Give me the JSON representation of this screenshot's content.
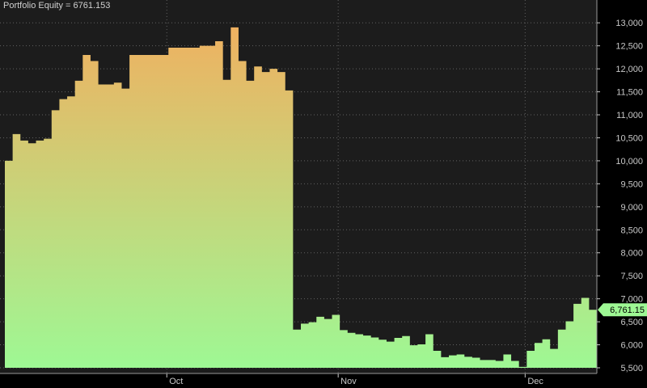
{
  "title": "Portfolio Equity = 6761.153",
  "last_value_label": "6,761.15",
  "colors": {
    "background": "#000000",
    "plot_bg": "#1c1c1c",
    "gradient_top": "#f0b060",
    "gradient_bottom": "#9ef894",
    "grid": "#606060",
    "badge": "#9ef894"
  },
  "chart_data": {
    "type": "area",
    "title": "Portfolio Equity = 6761.153",
    "xlabel": "",
    "ylabel": "",
    "ylim": [
      5500,
      13250
    ],
    "yticks": [
      5500,
      6000,
      6500,
      7000,
      7500,
      8000,
      8500,
      9000,
      9500,
      10000,
      10500,
      11000,
      11500,
      12000,
      12500,
      13000
    ],
    "ytick_labels": [
      "5,500",
      "6,000",
      "6,500",
      "7,000",
      "7,500",
      "8,000",
      "8,500",
      "9,000",
      "9,500",
      "10,000",
      "10,500",
      "11,000",
      "11,500",
      "12,000",
      "12,500",
      "13,000"
    ],
    "x_month_labels": [
      {
        "label": "Oct",
        "index": 21
      },
      {
        "label": "Nov",
        "index": 43
      },
      {
        "label": "Dec",
        "index": 67
      }
    ],
    "grid": true,
    "series": [
      {
        "values": [
          10000,
          10580,
          10440,
          10380,
          10440,
          10480,
          11100,
          11340,
          11400,
          11740,
          12300,
          12170,
          11660,
          11660,
          11700,
          11570,
          12300,
          12300,
          12300,
          12300,
          12300,
          12460,
          12460,
          12460,
          12460,
          12500,
          12500,
          12600,
          11760,
          12900,
          12170,
          11740,
          12050,
          11930,
          12000,
          11930,
          11530,
          6330,
          6460,
          6490,
          6610,
          6560,
          6650,
          6320,
          6260,
          6230,
          6200,
          6160,
          6110,
          6070,
          6150,
          6190,
          5990,
          6010,
          6230,
          5870,
          5730,
          5770,
          5790,
          5740,
          5720,
          5670,
          5670,
          5650,
          5790,
          5650,
          5520,
          5870,
          6040,
          6120,
          5910,
          6330,
          6510,
          6890,
          7020,
          6761
        ]
      }
    ]
  }
}
